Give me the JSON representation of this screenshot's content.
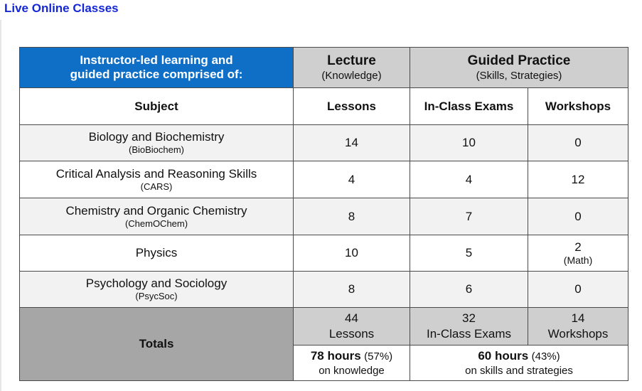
{
  "page_title": "Live Online Classes",
  "header": {
    "intro_line1": "Instructor-led learning and",
    "intro_line2": "guided practice comprised of:",
    "lecture_title": "Lecture",
    "lecture_sub": "(Knowledge)",
    "guided_title": "Guided Practice",
    "guided_sub": "(Skills, Strategies)"
  },
  "columns": {
    "subject": "Subject",
    "lessons": "Lessons",
    "exams": "In-Class Exams",
    "workshops": "Workshops"
  },
  "rows": [
    {
      "name": "Biology and Biochemistry",
      "abbr": "(BioBiochem)",
      "lessons": "14",
      "exams": "10",
      "workshops": "0",
      "workshops_note": ""
    },
    {
      "name": "Critical Analysis and Reasoning Skills",
      "abbr": "(CARS)",
      "lessons": "4",
      "exams": "4",
      "workshops": "12",
      "workshops_note": ""
    },
    {
      "name": "Chemistry and Organic Chemistry",
      "abbr": "(ChemOChem)",
      "lessons": "8",
      "exams": "7",
      "workshops": "0",
      "workshops_note": ""
    },
    {
      "name": "Physics",
      "abbr": "",
      "lessons": "10",
      "exams": "5",
      "workshops": "2",
      "workshops_note": "(Math)"
    },
    {
      "name": "Psychology and Sociology",
      "abbr": "(PsycSoc)",
      "lessons": "8",
      "exams": "6",
      "workshops": "0",
      "workshops_note": ""
    }
  ],
  "totals": {
    "label": "Totals",
    "lessons_num": "44",
    "lessons_label": "Lessons",
    "exams_num": "32",
    "exams_label": "In-Class Exams",
    "workshops_num": "14",
    "workshops_label": "Workshops",
    "knowledge_hours": "78 hours",
    "knowledge_pct": "(57%)",
    "knowledge_note": "on knowledge",
    "skills_hours": "60 hours",
    "skills_pct": "(43%)",
    "skills_note": "on skills and strategies"
  }
}
